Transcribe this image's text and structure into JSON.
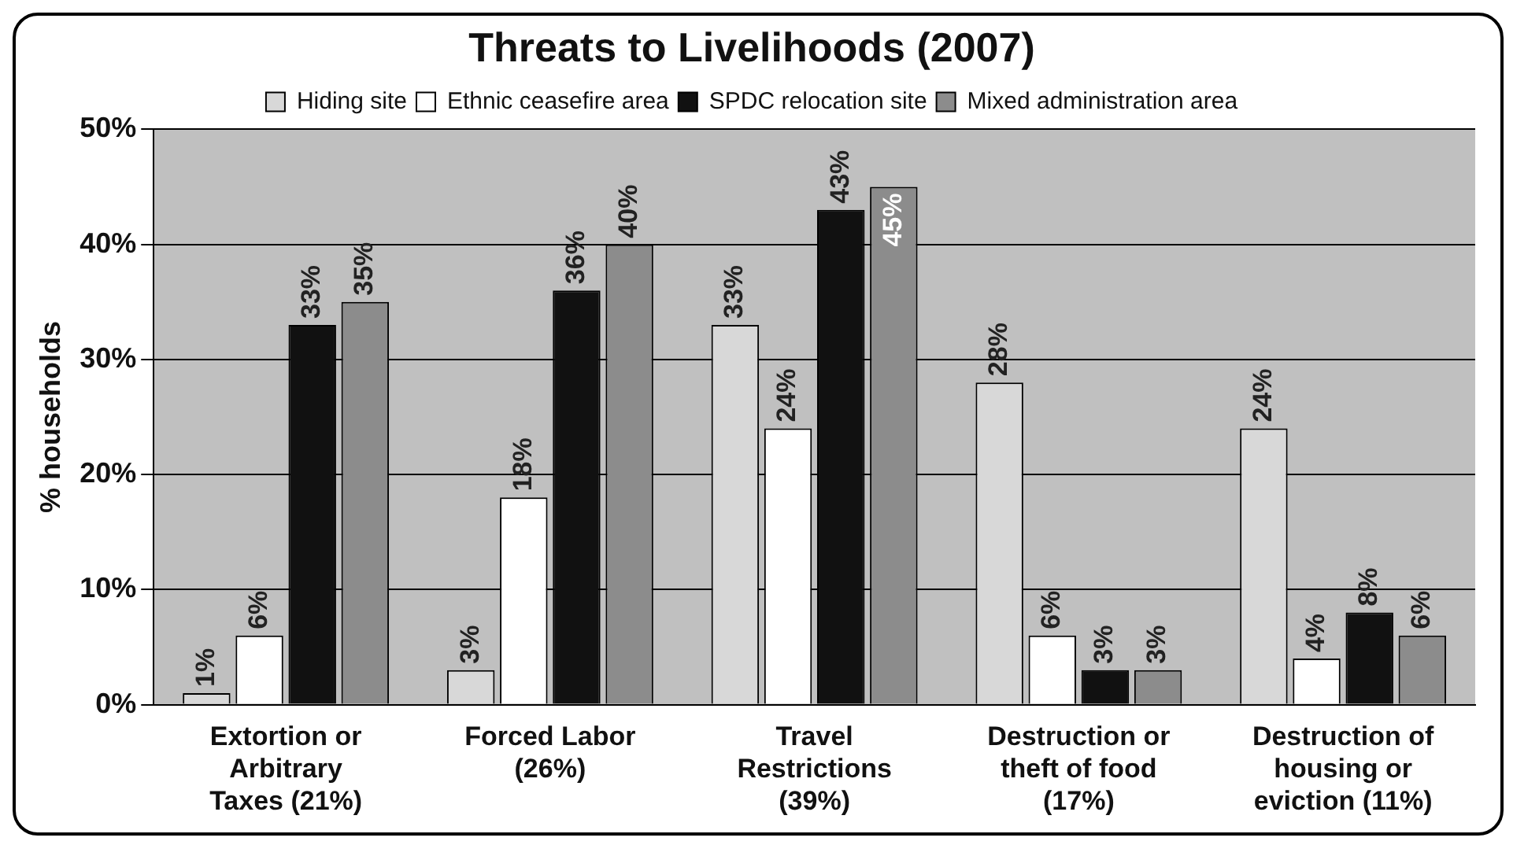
{
  "chart_data": {
    "type": "bar",
    "title": "Threats to Livelihoods (2007)",
    "ylabel": "% households",
    "categories": [
      "Extortion or Arbitrary Taxes (21%)",
      "Forced Labor (26%)",
      "Travel Restrictions (39%)",
      "Destruction or theft of food (17%)",
      "Destruction of housing or eviction (11%)"
    ],
    "series": [
      {
        "name": "Hiding site",
        "color": "#d8d8d8",
        "values": [
          1,
          3,
          33,
          28,
          24
        ],
        "value_labels": [
          "1%",
          "3%",
          "33%",
          "28%",
          "24%"
        ]
      },
      {
        "name": "Ethnic ceasefire area",
        "color": "#ffffff",
        "values": [
          6,
          18,
          24,
          6,
          4
        ],
        "value_labels": [
          "6%",
          "18%",
          "24%",
          "6%",
          "4%"
        ]
      },
      {
        "name": "SPDC relocation site",
        "color": "#111111",
        "values": [
          33,
          36,
          43,
          3,
          8
        ],
        "value_labels": [
          "33%",
          "36%",
          "43%",
          "3%",
          "8%"
        ]
      },
      {
        "name": "Mixed administration area",
        "color": "#8c8c8c",
        "values": [
          35,
          40,
          45,
          3,
          6
        ],
        "value_labels": [
          "35%",
          "40%",
          "45%",
          "3%",
          "6%"
        ]
      }
    ],
    "ylim": [
      0,
      50
    ],
    "yticks": [
      {
        "value": 0,
        "label": "0%"
      },
      {
        "value": 10,
        "label": "10%"
      },
      {
        "value": 20,
        "label": "20%"
      },
      {
        "value": 30,
        "label": "30%"
      },
      {
        "value": 40,
        "label": "40%"
      },
      {
        "value": 50,
        "label": "50%"
      }
    ],
    "grid": "y",
    "legend": "top"
  }
}
